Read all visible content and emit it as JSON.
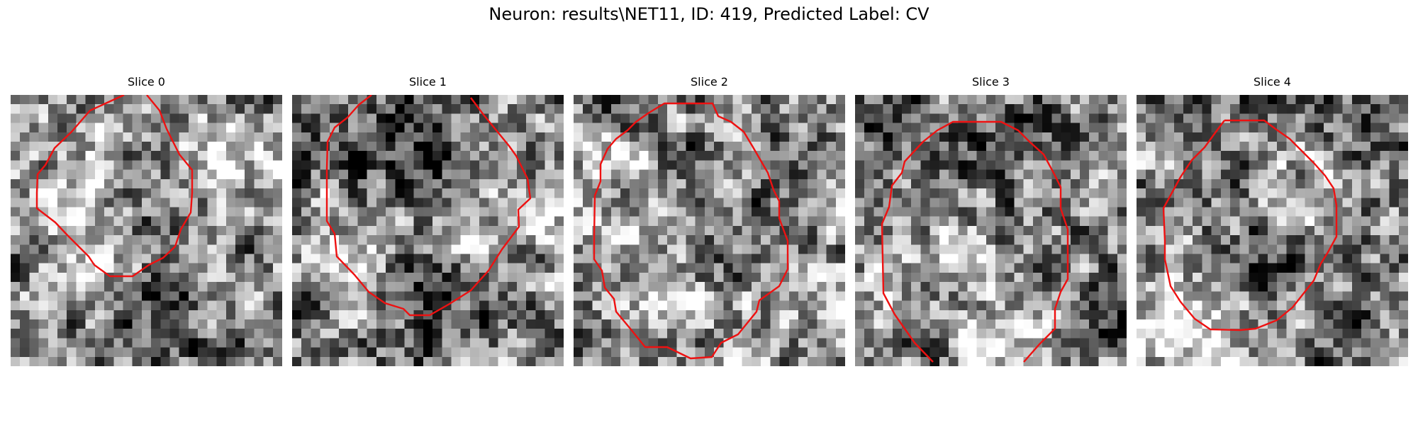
{
  "figure": {
    "title": "Neuron: results\\NET11, ID: 419, Predicted Label: CV"
  },
  "colors": {
    "contour": "#ee1111"
  },
  "panels": [
    {
      "title": "Slice 0",
      "seed": 11,
      "blobs": [
        [
          0.3,
          0.47,
          0.1,
          0.55
        ],
        [
          0.73,
          0.24,
          0.14,
          0.35
        ],
        [
          0.55,
          0.4,
          0.15,
          -0.25
        ],
        [
          0.2,
          0.15,
          0.12,
          0.25
        ],
        [
          0.5,
          0.85,
          0.16,
          -0.2
        ]
      ]
    },
    {
      "title": "Slice 1",
      "seed": 23,
      "blobs": [
        [
          0.22,
          0.55,
          0.1,
          0.45
        ],
        [
          0.62,
          0.5,
          0.09,
          0.4
        ],
        [
          0.4,
          0.18,
          0.12,
          -0.45
        ],
        [
          0.9,
          0.4,
          0.1,
          0.3
        ],
        [
          0.55,
          0.72,
          0.16,
          -0.3
        ]
      ]
    },
    {
      "title": "Slice 2",
      "seed": 37,
      "blobs": [
        [
          0.3,
          0.58,
          0.14,
          0.3
        ],
        [
          0.5,
          0.45,
          0.14,
          -0.2
        ],
        [
          0.9,
          0.7,
          0.12,
          0.2
        ],
        [
          0.05,
          0.25,
          0.1,
          0.25
        ]
      ]
    },
    {
      "title": "Slice 3",
      "seed": 41,
      "blobs": [
        [
          0.35,
          0.55,
          0.1,
          0.25
        ],
        [
          0.5,
          0.1,
          0.12,
          -0.3
        ],
        [
          0.92,
          0.8,
          0.1,
          -0.4
        ],
        [
          0.05,
          0.08,
          0.08,
          -0.45
        ],
        [
          0.55,
          0.95,
          0.14,
          0.3
        ]
      ]
    },
    {
      "title": "Slice 4",
      "seed": 53,
      "blobs": [
        [
          0.6,
          0.36,
          0.1,
          0.35
        ],
        [
          0.15,
          0.8,
          0.14,
          0.45
        ],
        [
          0.45,
          0.55,
          0.12,
          -0.3
        ],
        [
          0.8,
          0.12,
          0.12,
          -0.2
        ]
      ]
    }
  ]
}
